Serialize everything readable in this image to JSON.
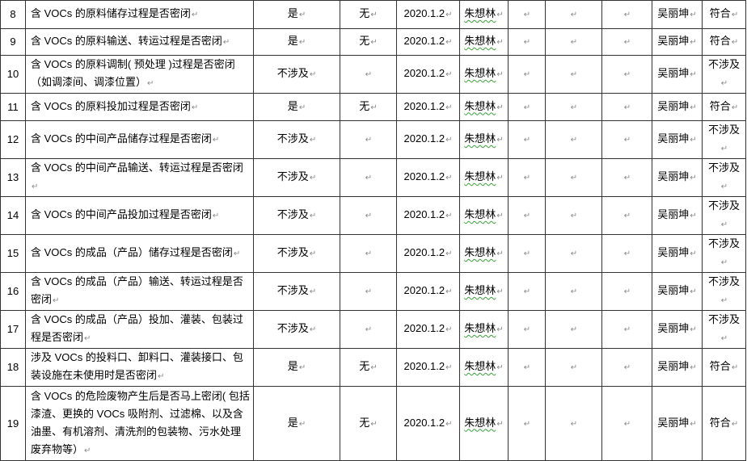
{
  "rows": [
    {
      "no": "8",
      "item": "含 VOCs 的原料储存过程是否密闭",
      "status": "是",
      "issue": "无",
      "date": "2020.1.2",
      "inspector": "朱想林",
      "c1": "",
      "c2": "",
      "c3": "",
      "reviewer": "吴丽坤",
      "result": "符合"
    },
    {
      "no": "9",
      "item": "含 VOCs 的原料输送、转运过程是否密闭",
      "status": "是",
      "issue": "无",
      "date": "2020.1.2",
      "inspector": "朱想林",
      "c1": "",
      "c2": "",
      "c3": "",
      "reviewer": "吴丽坤",
      "result": "符合"
    },
    {
      "no": "10",
      "item": "含 VOCs 的原料调制( 预处理 )过程是否密闭（如调漆间、调漆位置）",
      "status": "不涉及",
      "issue": "",
      "date": "2020.1.2",
      "inspector": "朱想林",
      "c1": "",
      "c2": "",
      "c3": "",
      "reviewer": "吴丽坤",
      "result": "不涉及"
    },
    {
      "no": "11",
      "item": "含 VOCs 的原料投加过程是否密闭",
      "status": "是",
      "issue": "无",
      "date": "2020.1.2",
      "inspector": "朱想林",
      "c1": "",
      "c2": "",
      "c3": "",
      "reviewer": "吴丽坤",
      "result": "符合"
    },
    {
      "no": "12",
      "item": "含 VOCs 的中间产品储存过程是否密闭",
      "status": "不涉及",
      "issue": "",
      "date": "2020.1.2",
      "inspector": "朱想林",
      "c1": "",
      "c2": "",
      "c3": "",
      "reviewer": "吴丽坤",
      "result": "不涉及"
    },
    {
      "no": "13",
      "item": "含 VOCs 的中间产品输送、转运过程是否密闭",
      "status": "不涉及",
      "issue": "",
      "date": "2020.1.2",
      "inspector": "朱想林",
      "c1": "",
      "c2": "",
      "c3": "",
      "reviewer": "吴丽坤",
      "result": "不涉及"
    },
    {
      "no": "14",
      "item": "含 VOCs 的中间产品投加过程是否密闭",
      "status": "不涉及",
      "issue": "",
      "date": "2020.1.2",
      "inspector": "朱想林",
      "c1": "",
      "c2": "",
      "c3": "",
      "reviewer": "吴丽坤",
      "result": "不涉及"
    },
    {
      "no": "15",
      "item": "含 VOCs 的成品（产品）储存过程是否密闭",
      "status": "不涉及",
      "issue": "",
      "date": "2020.1.2",
      "inspector": "朱想林",
      "c1": "",
      "c2": "",
      "c3": "",
      "reviewer": "吴丽坤",
      "result": "不涉及"
    },
    {
      "no": "16",
      "item": "含 VOCs 的成品（产品）输送、转运过程是否密闭",
      "status": "不涉及",
      "issue": "",
      "date": "2020.1.2",
      "inspector": "朱想林",
      "c1": "",
      "c2": "",
      "c3": "",
      "reviewer": "吴丽坤",
      "result": "不涉及"
    },
    {
      "no": "17",
      "item": "含 VOCs 的成品（产品）投加、灌装、包装过程是否密闭",
      "status": "不涉及",
      "issue": "",
      "date": "2020.1.2",
      "inspector": "朱想林",
      "c1": "",
      "c2": "",
      "c3": "",
      "reviewer": "吴丽坤",
      "result": "不涉及"
    },
    {
      "no": "18",
      "item": "涉及 VOCs 的投料口、卸料口、灌装接口、包装设施在未使用时是否密闭",
      "status": "是",
      "issue": "无",
      "date": "2020.1.2",
      "inspector": "朱想林",
      "c1": "",
      "c2": "",
      "c3": "",
      "reviewer": "吴丽坤",
      "result": "符合"
    },
    {
      "no": "19",
      "item": "含 VOCs 的危险废物产生后是否马上密闭( 包括漆渣、更换的 VOCs 吸附剂、过滤棉、以及含油墨、有机溶剂、清洗剂的包装物、污水处理废弃物等）",
      "status": "是",
      "issue": "无",
      "date": "2020.1.2",
      "inspector": "朱想林",
      "c1": "",
      "c2": "",
      "c3": "",
      "reviewer": "吴丽坤",
      "result": "符合"
    }
  ]
}
